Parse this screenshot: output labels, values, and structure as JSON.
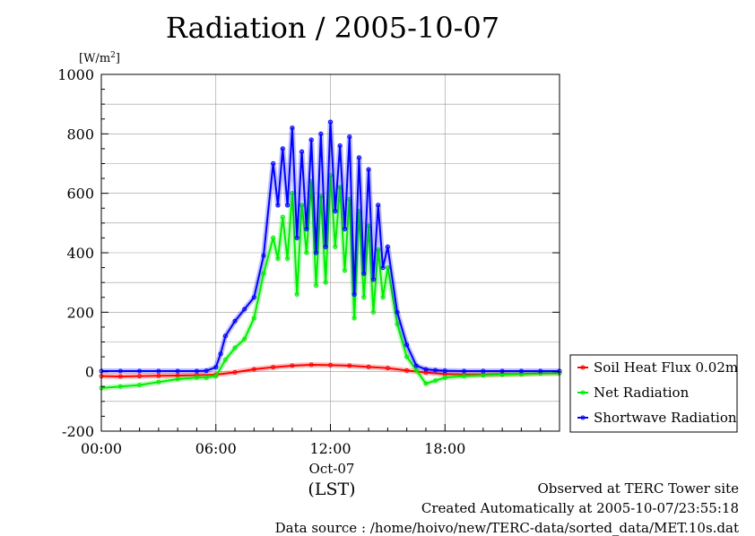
{
  "chart_data": {
    "type": "line",
    "title": "Radiation / 2005-10-07",
    "ylabel": "[W/m²]",
    "ylabel_unit_base": "[W/m",
    "ylabel_unit_sup": "2",
    "ylabel_unit_end": "]",
    "xlabel_date": "Oct-07",
    "xlabel": "(LST)",
    "ylim": [
      -200,
      1000
    ],
    "xlim": [
      0,
      24
    ],
    "yticks": [
      -200,
      0,
      200,
      400,
      600,
      800,
      1000
    ],
    "xticks": [
      0,
      6,
      12,
      18
    ],
    "xtick_labels": [
      "00:00",
      "06:00",
      "12:00",
      "18:00"
    ],
    "grid": true,
    "legend_position": "right",
    "series": [
      {
        "name": "Soil Heat Flux 0.02m",
        "color": "#ff0000",
        "x": [
          0,
          1,
          2,
          3,
          4,
          5,
          6,
          7,
          8,
          9,
          10,
          11,
          12,
          13,
          14,
          15,
          16,
          17,
          18,
          19,
          20,
          21,
          22,
          23,
          24
        ],
        "values": [
          -15,
          -16,
          -15,
          -14,
          -13,
          -12,
          -10,
          -2,
          8,
          15,
          20,
          23,
          22,
          20,
          16,
          12,
          4,
          -3,
          -8,
          -10,
          -10,
          -9,
          -8,
          -6,
          -5
        ]
      },
      {
        "name": "Net Radiation",
        "color": "#00ee00",
        "x": [
          0,
          1,
          2,
          3,
          4,
          5,
          5.5,
          6,
          6.5,
          7,
          7.5,
          8,
          8.5,
          9,
          9.25,
          9.5,
          9.75,
          10,
          10.25,
          10.5,
          10.75,
          11,
          11.25,
          11.5,
          11.75,
          12,
          12.25,
          12.5,
          12.75,
          13,
          13.25,
          13.5,
          13.75,
          14,
          14.25,
          14.5,
          14.75,
          15,
          15.5,
          16,
          16.5,
          17,
          17.5,
          18,
          19,
          20,
          21,
          22,
          23,
          24
        ],
        "values": [
          -55,
          -50,
          -45,
          -35,
          -25,
          -20,
          -20,
          -15,
          40,
          80,
          110,
          180,
          330,
          450,
          380,
          520,
          380,
          600,
          260,
          560,
          400,
          640,
          290,
          590,
          300,
          660,
          420,
          620,
          340,
          580,
          180,
          540,
          250,
          490,
          200,
          410,
          250,
          350,
          160,
          50,
          5,
          -40,
          -30,
          -20,
          -15,
          -12,
          -10,
          -8,
          -6,
          -5
        ]
      },
      {
        "name": "Shortwave Radiation",
        "color": "#0000ff",
        "x": [
          0,
          1,
          2,
          3,
          4,
          5,
          5.5,
          6,
          6.25,
          6.5,
          7,
          7.5,
          8,
          8.5,
          9,
          9.25,
          9.5,
          9.75,
          10,
          10.25,
          10.5,
          10.75,
          11,
          11.25,
          11.5,
          11.75,
          12,
          12.25,
          12.5,
          12.75,
          13,
          13.25,
          13.5,
          13.75,
          14,
          14.25,
          14.5,
          14.75,
          15,
          15.5,
          16,
          16.5,
          17,
          17.5,
          18,
          19,
          20,
          21,
          22,
          23,
          24
        ],
        "values": [
          2,
          2,
          2,
          2,
          2,
          2,
          3,
          15,
          60,
          120,
          170,
          210,
          250,
          390,
          700,
          560,
          750,
          560,
          820,
          450,
          740,
          480,
          780,
          400,
          800,
          420,
          840,
          540,
          760,
          480,
          790,
          260,
          720,
          330,
          680,
          310,
          560,
          350,
          420,
          200,
          90,
          20,
          8,
          5,
          3,
          2,
          2,
          2,
          2,
          2,
          2
        ]
      }
    ]
  },
  "footer": {
    "site": "Observed at TERC Tower site",
    "created": "Created Automatically at 2005-10-07/23:55:18",
    "source": "Data source : /home/hoivo/new/TERC-data/sorted_data/MET.10s.dat"
  }
}
